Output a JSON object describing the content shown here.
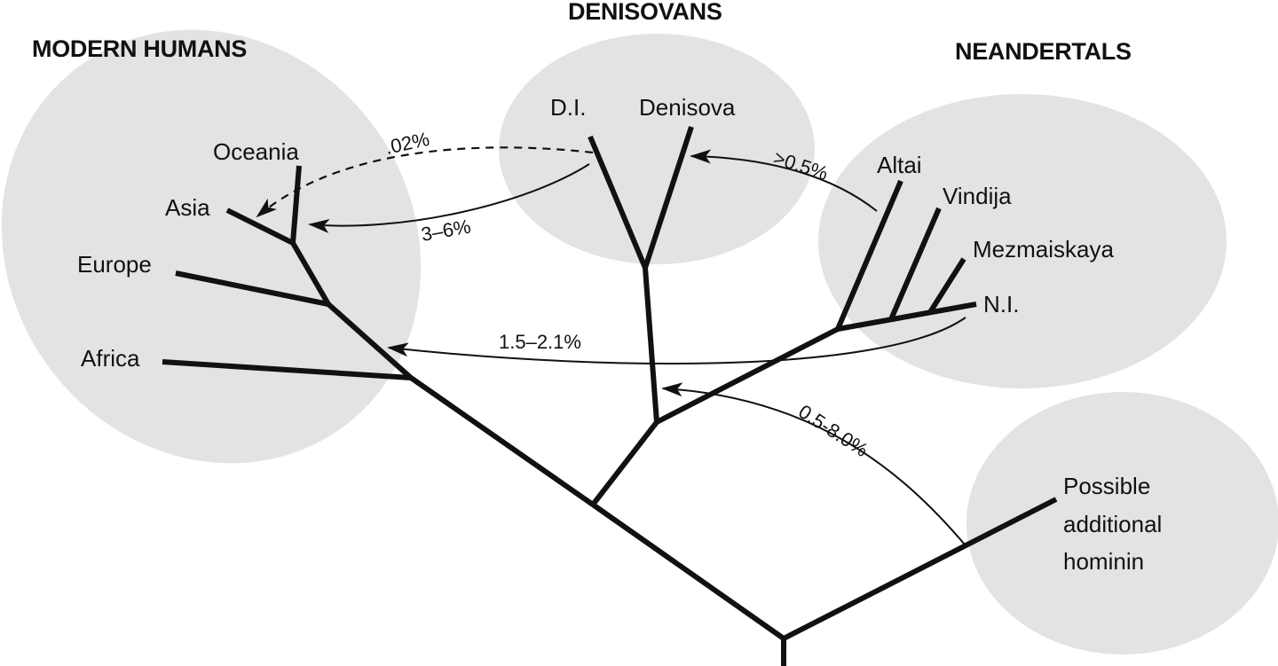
{
  "groups": {
    "modern_humans": "MODERN HUMANS",
    "denisovans": "DENISOVANS",
    "neandertals": "NEANDERTALS"
  },
  "leaves": {
    "oceania": "Oceania",
    "asia": "Asia",
    "europe": "Europe",
    "africa": "Africa",
    "di": "D.I.",
    "denisova": "Denisova",
    "altai": "Altai",
    "vindija": "Vindija",
    "mezmaiskaya": "Mezmaiskaya",
    "ni": "N.I.",
    "possible_line1": "Possible",
    "possible_line2": "additional",
    "possible_line3": "hominin"
  },
  "gene_flow": {
    "di_to_oceania": ".02%",
    "di_to_asia": "3–6%",
    "neandertal_to_denisova": ">0.5%",
    "ni_to_africa": "1.5–2.1%",
    "hominin_to_denisovan": "0.5-8.0%"
  },
  "colors": {
    "group_fill": "#e3e3e5",
    "line": "#111111"
  }
}
